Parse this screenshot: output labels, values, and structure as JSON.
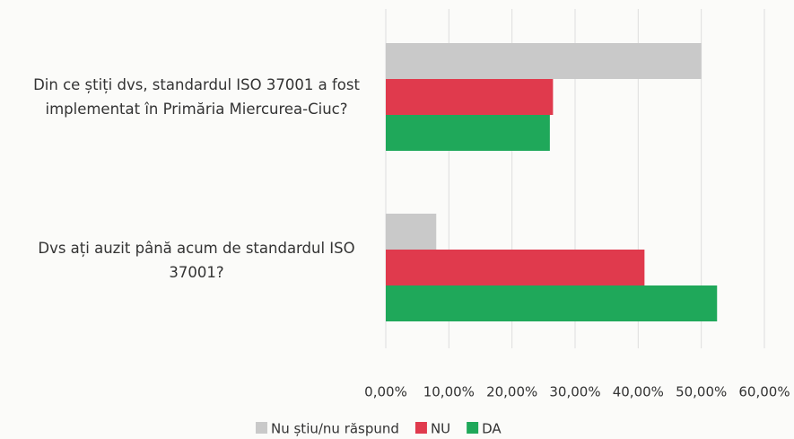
{
  "chart_data": {
    "type": "barh",
    "categories": [
      "Din ce știți dvs, standardul ISO 37001 a fost implementat în Primăria Miercurea-Ciuc?",
      "Dvs ați auzit până acum de standardul ISO 37001?"
    ],
    "series": [
      {
        "name": "Nu știu/nu răspund",
        "color": "#c9c9c9",
        "values": [
          50,
          8
        ]
      },
      {
        "name": "NU",
        "color": "#e03a4d",
        "values": [
          26.5,
          41
        ]
      },
      {
        "name": "DA",
        "color": "#1fa85a",
        "values": [
          26,
          52.5
        ]
      }
    ],
    "xlim": [
      0,
      60
    ],
    "xticks": [
      {
        "value": 0,
        "label": "0,00%"
      },
      {
        "value": 10,
        "label": "10,00%"
      },
      {
        "value": 20,
        "label": "20,00%"
      },
      {
        "value": 30,
        "label": "30,00%"
      },
      {
        "value": 40,
        "label": "40,00%"
      },
      {
        "value": 50,
        "label": "50,00%"
      },
      {
        "value": 60,
        "label": "60,00%"
      }
    ],
    "grid": true,
    "legend": "bottom"
  }
}
